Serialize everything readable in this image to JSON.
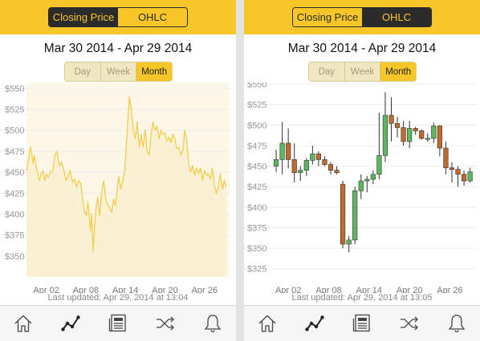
{
  "left_screen": {
    "toggle": {
      "closing_price": "Closing Price",
      "ohlc": "OHLC",
      "selected": "closing_price"
    },
    "date_range": "Mar 30 2014 - Apr 29 2014",
    "period": {
      "day": "Day",
      "week": "Week",
      "month": "Month",
      "selected": "month"
    },
    "last_updated": "Last updated: Apr 29, 2014 at 13:04"
  },
  "right_screen": {
    "toggle": {
      "closing_price": "Closing Price",
      "ohlc": "OHLC",
      "selected": "ohlc"
    },
    "date_range": "Mar 30 2014 - Apr 29 2014",
    "period": {
      "day": "Day",
      "week": "Week",
      "month": "Month",
      "selected": "month"
    },
    "last_updated": "Last updated: Apr 29, 2014 at 13:05"
  },
  "tabs": [
    {
      "name": "home-icon"
    },
    {
      "name": "chart-icon"
    },
    {
      "name": "news-icon"
    },
    {
      "name": "shuffle-icon"
    },
    {
      "name": "bell-icon"
    }
  ],
  "colors": {
    "accent": "#f7c628",
    "dark": "#2b2b2b",
    "up": "#5bb85d",
    "down": "#c06a2e"
  },
  "chart_data": [
    {
      "type": "area",
      "y_ticks": [
        550,
        525,
        500,
        475,
        450,
        425,
        400,
        375,
        350
      ],
      "y_tick_labels": [
        "$550",
        "$525",
        "$500",
        "$475",
        "$450",
        "$425",
        "$400",
        "$375",
        "$350"
      ],
      "x_tick_labels": [
        "Apr 02",
        "Apr 08",
        "Apr 14",
        "Apr 20",
        "Apr 26"
      ],
      "x_tick_days": [
        3,
        9,
        15,
        21,
        27
      ],
      "ylim": [
        325,
        557
      ],
      "xlim": [
        0,
        30.8
      ],
      "grid": true,
      "series": [
        {
          "x": [
            0.0,
            0.2,
            0.4,
            0.6,
            0.8,
            1.0,
            1.2,
            1.5,
            1.8,
            2.0,
            2.2,
            2.5,
            2.8,
            3.0,
            3.3,
            3.6,
            4.0,
            4.3,
            4.6,
            5.0,
            5.3,
            5.6,
            6.0,
            6.3,
            6.6,
            7.0,
            7.3,
            7.6,
            7.9,
            8.2,
            8.5,
            8.8,
            9.1,
            9.3,
            9.5,
            9.7,
            9.9,
            10.1,
            10.3,
            10.5,
            10.8,
            11.1,
            11.4,
            11.7,
            12.0,
            12.3,
            12.6,
            12.9,
            13.2,
            13.5,
            13.8,
            14.0,
            14.3,
            14.6,
            14.9,
            15.2,
            15.4,
            15.6,
            15.9,
            16.2,
            16.5,
            16.8,
            17.1,
            17.4,
            17.7,
            18.0,
            18.3,
            18.6,
            18.9,
            19.2,
            19.5,
            19.8,
            20.1,
            20.4,
            20.7,
            21.0,
            21.3,
            21.6,
            21.9,
            22.2,
            22.5,
            22.8,
            23.1,
            23.4,
            23.7,
            24.0,
            24.3,
            24.6,
            24.9,
            25.2,
            25.5,
            25.8,
            26.1,
            26.4,
            26.7,
            27.0,
            27.3,
            27.6,
            27.9,
            28.2,
            28.5,
            28.8,
            29.1,
            29.4,
            29.7,
            30.0,
            30.3
          ],
          "y": [
            452,
            460,
            470,
            480,
            472,
            460,
            470,
            455,
            445,
            440,
            448,
            452,
            440,
            448,
            444,
            450,
            452,
            470,
            475,
            458,
            462,
            455,
            440,
            445,
            452,
            438,
            442,
            432,
            440,
            437,
            420,
            403,
            398,
            415,
            402,
            380,
            400,
            356,
            380,
            405,
            420,
            398,
            425,
            440,
            418,
            412,
            408,
            402,
            418,
            410,
            433,
            445,
            430,
            440,
            452,
            490,
            515,
            540,
            525,
            500,
            490,
            510,
            480,
            495,
            480,
            500,
            475,
            470,
            495,
            510,
            500,
            505,
            490,
            500,
            495,
            497,
            487,
            492,
            485,
            495,
            490,
            478,
            480,
            470,
            475,
            500,
            488,
            460,
            450,
            458,
            446,
            455,
            448,
            455,
            440,
            452,
            446,
            448,
            442,
            455,
            435,
            424,
            432,
            448,
            430,
            440,
            432
          ]
        }
      ]
    },
    {
      "type": "candlestick",
      "y_ticks": [
        550,
        525,
        500,
        475,
        450,
        425,
        400,
        375,
        350,
        325
      ],
      "y_tick_labels": [
        "$550",
        "$525",
        "$500",
        "$475",
        "$450",
        "$425",
        "$400",
        "$375",
        "$350",
        "$325"
      ],
      "x_tick_labels": [
        "Apr 02",
        "Apr 08",
        "Apr 14",
        "Apr 20",
        "Apr 26"
      ],
      "x_tick_days": [
        3,
        9,
        15,
        21,
        27
      ],
      "ylim": [
        315,
        552
      ],
      "xlim": [
        0,
        31
      ],
      "grid": true,
      "series": [
        {
          "x": [
            1.2,
            2.1,
            3.0,
            3.9,
            4.8,
            5.7,
            6.6,
            7.5,
            8.4,
            9.3,
            10.2,
            11.1,
            12.0,
            12.9,
            13.8,
            14.7,
            15.6,
            16.5,
            17.4,
            18.3,
            19.2,
            20.1,
            21.0,
            21.9,
            22.8,
            23.7,
            24.6,
            25.5,
            26.4,
            27.3,
            28.2,
            29.1,
            30.0
          ],
          "open": [
            450,
            458,
            478,
            458,
            442,
            445,
            457,
            465,
            458,
            452,
            445,
            428,
            355,
            360,
            420,
            432,
            434,
            440,
            463,
            512,
            502,
            497,
            480,
            496,
            493,
            484,
            484,
            499,
            472,
            448,
            446,
            440,
            432
          ],
          "close": [
            458,
            478,
            458,
            442,
            445,
            457,
            465,
            458,
            452,
            445,
            442,
            355,
            360,
            420,
            432,
            434,
            440,
            463,
            512,
            502,
            497,
            480,
            496,
            493,
            484,
            484,
            499,
            472,
            448,
            446,
            440,
            432,
            443
          ],
          "high": [
            470,
            504,
            496,
            478,
            450,
            460,
            475,
            468,
            462,
            455,
            450,
            432,
            365,
            425,
            440,
            438,
            445,
            515,
            540,
            534,
            510,
            505,
            505,
            498,
            495,
            490,
            503,
            500,
            480,
            455,
            450,
            445,
            448
          ],
          "low": [
            443,
            440,
            447,
            430,
            432,
            438,
            452,
            450,
            450,
            440,
            440,
            350,
            345,
            355,
            410,
            418,
            428,
            434,
            455,
            480,
            485,
            475,
            472,
            488,
            482,
            480,
            478,
            462,
            440,
            430,
            425,
            426,
            430
          ]
        }
      ]
    }
  ]
}
